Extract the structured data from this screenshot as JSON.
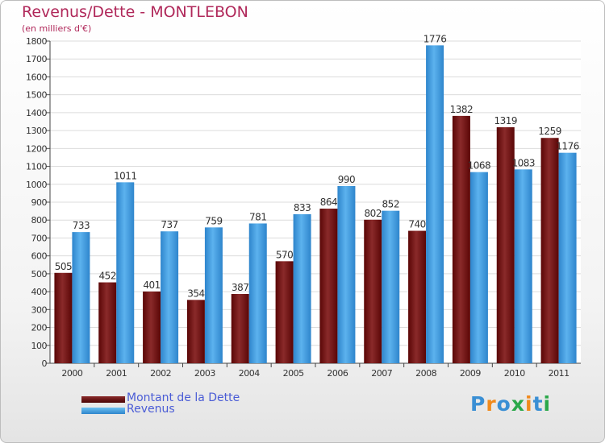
{
  "header": {
    "title": "Revenus/Dette - MONTLEBON",
    "subtitle": "(en milliers d'€)"
  },
  "chart_data": {
    "type": "bar",
    "categories": [
      "2000",
      "2001",
      "2002",
      "2003",
      "2004",
      "2005",
      "2006",
      "2007",
      "2008",
      "2009",
      "2010",
      "2011"
    ],
    "series": [
      {
        "name": "Montant de la Dette",
        "color": "#7a1a1a",
        "values": [
          505,
          452,
          401,
          354,
          387,
          570,
          864,
          802,
          740,
          1382,
          1319,
          1259
        ]
      },
      {
        "name": "Revenus",
        "color": "#4aa3e2",
        "values": [
          733,
          1011,
          737,
          759,
          781,
          833,
          990,
          852,
          1776,
          1068,
          1083,
          1176
        ]
      }
    ],
    "ylim": [
      0,
      1800
    ],
    "yticks": [
      0,
      100,
      200,
      300,
      400,
      500,
      600,
      700,
      800,
      900,
      1000,
      1100,
      1200,
      1300,
      1400,
      1500,
      1600,
      1700,
      1800
    ],
    "grid": true,
    "legend_position": "bottom-left"
  },
  "logo": {
    "text": "Proxiti",
    "letters": [
      "P",
      "r",
      "o",
      "x",
      "i",
      "t",
      "i"
    ],
    "letter_colors": [
      "#3a8fd4",
      "#f08a1c",
      "#3a8fd4",
      "#2ba84a",
      "#f08a1c",
      "#3a8fd4",
      "#2ba84a"
    ]
  }
}
